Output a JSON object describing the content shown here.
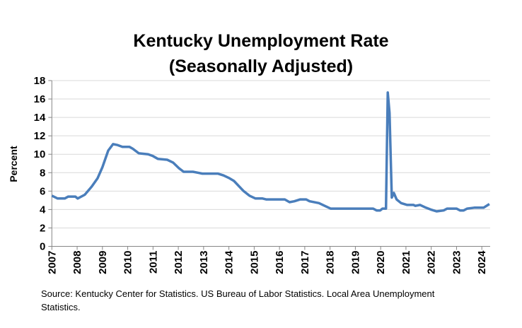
{
  "chart_data": {
    "type": "line",
    "title_line1": "Kentucky Unemployment Rate",
    "title_line2": "(Seasonally Adjusted)",
    "xlabel": "",
    "ylabel": "Percent",
    "ylim": [
      0,
      18
    ],
    "xlim": [
      2007,
      2024.33
    ],
    "y_ticks": [
      "0",
      "2",
      "4",
      "6",
      "8",
      "10",
      "12",
      "14",
      "16",
      "18"
    ],
    "x_ticks": [
      "2007",
      "2008",
      "2009",
      "2010",
      "2011",
      "2012",
      "2013",
      "2014",
      "2015",
      "2016",
      "2017",
      "2018",
      "2019",
      "2020",
      "2021",
      "2022",
      "2023",
      "2024"
    ],
    "grid": "horizontal",
    "legend": "none",
    "color": "#4a7ebb",
    "series": [
      {
        "x": [
          2007.0,
          2007.23,
          2007.51,
          2007.65,
          2007.93,
          2008.02,
          2008.3,
          2008.58,
          2008.81,
          2009.0,
          2009.23,
          2009.42,
          2009.6,
          2009.79,
          2010.07,
          2010.2,
          2010.44,
          2010.81,
          2011.0,
          2011.19,
          2011.56,
          2011.79,
          2012.02,
          2012.21,
          2012.58,
          2012.77,
          2012.95,
          2013.56,
          2013.79,
          2014.02,
          2014.2,
          2014.58,
          2014.81,
          2015.05,
          2015.33,
          2015.47,
          2015.98,
          2016.21,
          2016.4,
          2016.59,
          2016.82,
          2017.05,
          2017.19,
          2017.56,
          2017.79,
          2018.02,
          2019.05,
          2019.23,
          2019.7,
          2019.84,
          2019.98,
          2020.07,
          2020.21,
          2020.28,
          2020.35,
          2020.44,
          2020.52,
          2020.63,
          2020.81,
          2021.05,
          2021.3,
          2021.37,
          2021.56,
          2021.79,
          2021.98,
          2022.21,
          2022.49,
          2022.63,
          2023.0,
          2023.14,
          2023.28,
          2023.42,
          2023.7,
          2024.07,
          2024.3
        ],
        "y": [
          5.5,
          5.2,
          5.2,
          5.4,
          5.4,
          5.2,
          5.6,
          6.5,
          7.4,
          8.6,
          10.4,
          11.1,
          11.0,
          10.8,
          10.8,
          10.6,
          10.1,
          10.0,
          9.8,
          9.5,
          9.4,
          9.1,
          8.5,
          8.1,
          8.1,
          8.0,
          7.9,
          7.9,
          7.7,
          7.4,
          7.1,
          6.0,
          5.5,
          5.2,
          5.2,
          5.1,
          5.1,
          5.1,
          4.8,
          4.9,
          5.1,
          5.1,
          4.9,
          4.7,
          4.4,
          4.1,
          4.1,
          4.1,
          4.1,
          3.9,
          3.9,
          4.1,
          4.1,
          16.7,
          14.5,
          5.3,
          5.8,
          5.1,
          4.7,
          4.5,
          4.5,
          4.4,
          4.5,
          4.2,
          4.0,
          3.8,
          3.9,
          4.1,
          4.1,
          3.9,
          3.9,
          4.1,
          4.2,
          4.2,
          4.6
        ]
      }
    ]
  },
  "source": "Source: Kentucky Center for Statistics. US Bureau of Labor Statistics. Local Area Unemployment Statistics."
}
